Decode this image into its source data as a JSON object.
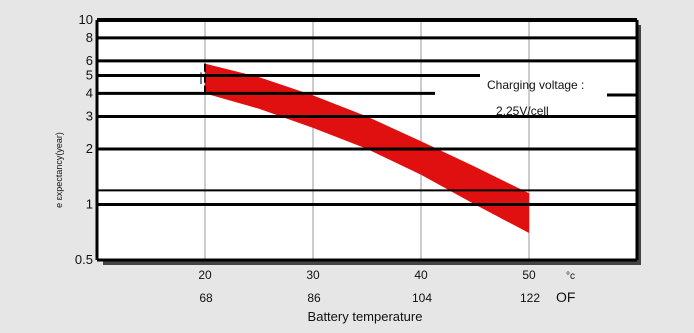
{
  "chart_data": {
    "type": "area",
    "title": "",
    "xlabel": "Battery temperature",
    "ylabel": "e   ɛxpectancy(year)",
    "y_scale": "log",
    "ylim": [
      0.5,
      10
    ],
    "xlim": [
      10,
      60
    ],
    "y_ticks": [
      "10",
      "8",
      "6",
      "5",
      "4",
      "3",
      "2",
      "1",
      "0.5"
    ],
    "x_ticks_celsius": [
      "20",
      "30",
      "40",
      "50"
    ],
    "x_ticks_fahrenheit": [
      "68",
      "86",
      "104",
      "122"
    ],
    "x_unit_celsius": "°c",
    "x_unit_fahrenheit": "OF",
    "annotation": {
      "line1": "Charging voltage :",
      "line2": "2.25V/cell"
    },
    "band": {
      "color": "#e01010",
      "x": [
        20,
        25,
        30,
        35,
        40,
        45,
        50
      ],
      "upper": [
        5.8,
        4.9,
        3.9,
        3.0,
        2.2,
        1.6,
        1.15
      ],
      "lower": [
        4.0,
        3.3,
        2.6,
        2.0,
        1.45,
        1.0,
        0.7
      ]
    },
    "grid": true,
    "legend": "none"
  }
}
